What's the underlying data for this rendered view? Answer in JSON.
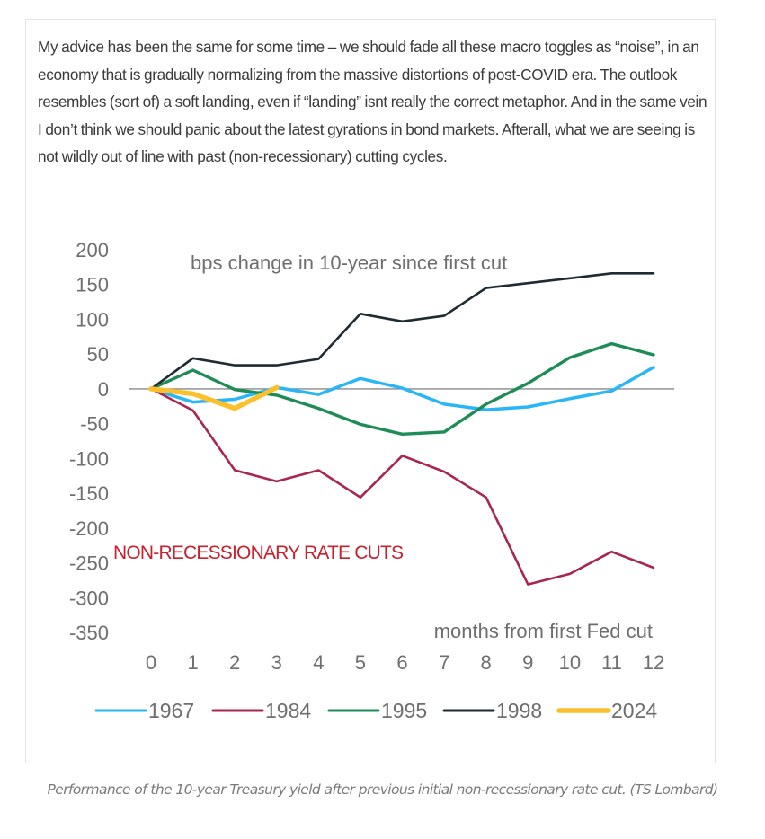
{
  "intro_text": "My advice has been the same for some time – we should fade all these macro toggles as “noise”, in an economy that is gradually normalizing from the massive distortions of post-COVID era. The outlook resembles (sort of) a soft landing, even if “landing” isnt really the correct metaphor. And in the same vein I don’t think we should panic about the latest gyrations in bond markets. Afterall, what we are seeing is not wildly out of line with past (non-recessionary) cutting cycles.",
  "caption": "Performance of the 10-year Treasury yield after previous initial non-recessionary rate cut. (TS Lombard)",
  "chart_data": {
    "type": "line",
    "title": "bps change in 10-year since first cut",
    "xlabel": "months from first Fed cut",
    "ylabel": "",
    "annotation": "NON-RECESSIONARY RATE CUTS",
    "x": [
      0,
      1,
      2,
      3,
      4,
      5,
      6,
      7,
      8,
      9,
      10,
      11,
      12
    ],
    "x_tick_labels": [
      "0",
      "1",
      "2",
      "3",
      "4",
      "5",
      "6",
      "7",
      "8",
      "9",
      "10",
      "11",
      "12"
    ],
    "y_ticks": [
      200,
      150,
      100,
      50,
      0,
      -50,
      -100,
      -150,
      -200,
      -250,
      -300,
      -350
    ],
    "y_tick_labels": [
      "200",
      "150",
      "100",
      "50",
      "0",
      "-50",
      "-100",
      "-150",
      "-200",
      "-250",
      "-300",
      "-350"
    ],
    "xlim": [
      0,
      12
    ],
    "ylim": [
      -350,
      200
    ],
    "grid": false,
    "zero_line": true,
    "legend_position": "bottom",
    "series": [
      {
        "name": "1967",
        "color": "#29b6f6",
        "values": [
          0,
          -19,
          -15,
          2,
          -8,
          15,
          1,
          -22,
          -30,
          -26,
          -14,
          -3,
          31
        ]
      },
      {
        "name": "1984",
        "color": "#a8264f",
        "values": [
          0,
          -31,
          -117,
          -133,
          -117,
          -156,
          -96,
          -119,
          -156,
          -281,
          -266,
          -234,
          -257
        ]
      },
      {
        "name": "1995",
        "color": "#1e8c57",
        "values": [
          0,
          27,
          -1,
          -9,
          -28,
          -51,
          -65,
          -62,
          -22,
          8,
          45,
          65,
          49
        ]
      },
      {
        "name": "1998",
        "color": "#1e2b33",
        "values": [
          0,
          44,
          34,
          34,
          43,
          108,
          97,
          105,
          145,
          152,
          159,
          166,
          166
        ]
      },
      {
        "name": "2024",
        "color": "#fbc02d",
        "values": [
          0,
          -7,
          -28,
          2
        ]
      }
    ]
  }
}
